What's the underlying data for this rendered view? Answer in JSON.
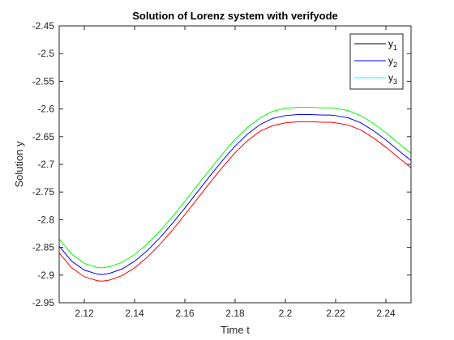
{
  "chart_data": {
    "type": "line",
    "title": "Solution of Lorenz system with verifyode",
    "xlabel": "Time t",
    "ylabel": "Solution y",
    "xlim": [
      2.11,
      2.25
    ],
    "ylim": [
      -2.95,
      -2.45
    ],
    "xticks": [
      "2.12",
      "2.14",
      "2.16",
      "2.18",
      "2.2",
      "2.22",
      "2.24"
    ],
    "xtick_values": [
      2.12,
      2.14,
      2.16,
      2.18,
      2.2,
      2.22,
      2.24
    ],
    "yticks": [
      "-2.45",
      "-2.5",
      "-2.55",
      "-2.6",
      "-2.65",
      "-2.7",
      "-2.75",
      "-2.8",
      "-2.85",
      "-2.9",
      "-2.95"
    ],
    "ytick_values": [
      -2.45,
      -2.5,
      -2.55,
      -2.6,
      -2.65,
      -2.7,
      -2.75,
      -2.8,
      -2.85,
      -2.9,
      -2.95
    ],
    "grid": false,
    "legend": {
      "placement": "top-right",
      "entries": [
        {
          "base": "y",
          "sub": "1",
          "color": "#000000"
        },
        {
          "base": "y",
          "sub": "2",
          "color": "#0000ff"
        },
        {
          "base": "y",
          "sub": "3",
          "color": "#00ffff"
        }
      ]
    },
    "series": [
      {
        "color": "#00ff00",
        "x": [
          2.11,
          2.115,
          2.12,
          2.125,
          2.127,
          2.13,
          2.135,
          2.14,
          2.145,
          2.15,
          2.155,
          2.16,
          2.165,
          2.17,
          2.175,
          2.18,
          2.185,
          2.19,
          2.195,
          2.2,
          2.205,
          2.21,
          2.215,
          2.218,
          2.22,
          2.225,
          2.23,
          2.235,
          2.24,
          2.245,
          2.25
        ],
        "y": [
          -2.835,
          -2.862,
          -2.879,
          -2.886,
          -2.887,
          -2.885,
          -2.877,
          -2.863,
          -2.844,
          -2.821,
          -2.795,
          -2.767,
          -2.738,
          -2.709,
          -2.681,
          -2.655,
          -2.633,
          -2.616,
          -2.604,
          -2.599,
          -2.597,
          -2.597,
          -2.598,
          -2.598,
          -2.599,
          -2.603,
          -2.612,
          -2.626,
          -2.643,
          -2.662,
          -2.68
        ]
      },
      {
        "color": "#0000ff",
        "x": [
          2.11,
          2.115,
          2.12,
          2.125,
          2.127,
          2.13,
          2.135,
          2.14,
          2.145,
          2.15,
          2.155,
          2.16,
          2.165,
          2.17,
          2.175,
          2.18,
          2.185,
          2.19,
          2.195,
          2.2,
          2.205,
          2.21,
          2.215,
          2.218,
          2.22,
          2.225,
          2.23,
          2.235,
          2.24,
          2.245,
          2.25
        ],
        "y": [
          -2.848,
          -2.875,
          -2.891,
          -2.898,
          -2.899,
          -2.897,
          -2.889,
          -2.875,
          -2.856,
          -2.833,
          -2.807,
          -2.779,
          -2.75,
          -2.721,
          -2.693,
          -2.667,
          -2.645,
          -2.628,
          -2.617,
          -2.612,
          -2.61,
          -2.61,
          -2.611,
          -2.611,
          -2.612,
          -2.616,
          -2.625,
          -2.639,
          -2.656,
          -2.675,
          -2.693
        ]
      },
      {
        "color": "#ff0000",
        "x": [
          2.11,
          2.115,
          2.12,
          2.125,
          2.127,
          2.13,
          2.135,
          2.14,
          2.145,
          2.15,
          2.155,
          2.16,
          2.165,
          2.17,
          2.175,
          2.18,
          2.185,
          2.19,
          2.195,
          2.2,
          2.205,
          2.21,
          2.215,
          2.218,
          2.22,
          2.225,
          2.23,
          2.235,
          2.24,
          2.245,
          2.25
        ],
        "y": [
          -2.86,
          -2.887,
          -2.903,
          -2.91,
          -2.911,
          -2.909,
          -2.901,
          -2.887,
          -2.868,
          -2.845,
          -2.819,
          -2.791,
          -2.762,
          -2.733,
          -2.705,
          -2.679,
          -2.657,
          -2.64,
          -2.63,
          -2.625,
          -2.623,
          -2.623,
          -2.624,
          -2.624,
          -2.625,
          -2.629,
          -2.638,
          -2.652,
          -2.669,
          -2.688,
          -2.706
        ]
      }
    ]
  }
}
